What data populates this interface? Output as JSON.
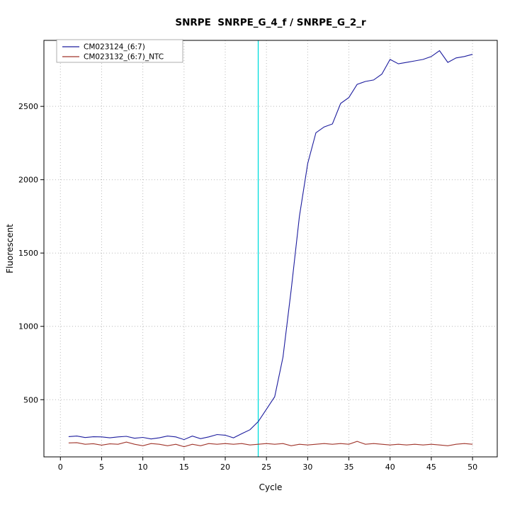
{
  "chart_data": {
    "type": "line",
    "title": "SNRPE  SNRPE_G_4_f / SNRPE_G_2_r",
    "xlabel": "Cycle",
    "ylabel": "Fluorescent",
    "xlim": [
      -2,
      53
    ],
    "ylim": [
      110,
      2950
    ],
    "xticks": [
      0,
      5,
      10,
      15,
      20,
      25,
      30,
      35,
      40,
      45,
      50
    ],
    "yticks": [
      500,
      1000,
      1500,
      2000,
      2500
    ],
    "grid": true,
    "grid_color": "#b9b9b9",
    "legend_position": "top-left",
    "threshold_x": 24,
    "threshold_color": "#00dddd",
    "x": [
      1,
      2,
      3,
      4,
      5,
      6,
      7,
      8,
      9,
      10,
      11,
      12,
      13,
      14,
      15,
      16,
      17,
      18,
      19,
      20,
      21,
      22,
      23,
      24,
      25,
      26,
      27,
      28,
      29,
      30,
      31,
      32,
      33,
      34,
      35,
      36,
      37,
      38,
      39,
      40,
      41,
      42,
      43,
      44,
      45,
      46,
      47,
      48,
      49,
      50
    ],
    "series": [
      {
        "name": "CM023124_(6:7)",
        "color": "#1d1d9e",
        "values": [
          248,
          252,
          242,
          247,
          246,
          240,
          246,
          250,
          237,
          243,
          232,
          240,
          252,
          246,
          228,
          252,
          234,
          246,
          262,
          258,
          240,
          268,
          295,
          350,
          435,
          520,
          790,
          1250,
          1750,
          2110,
          2320,
          2360,
          2380,
          2520,
          2560,
          2650,
          2670,
          2680,
          2720,
          2820,
          2790,
          2800,
          2810,
          2820,
          2840,
          2880,
          2800,
          2830,
          2840,
          2855
        ]
      },
      {
        "name": "CM023132_(6:7)_NTC",
        "color": "#a0352b",
        "values": [
          205,
          207,
          196,
          200,
          190,
          199,
          196,
          211,
          196,
          186,
          201,
          196,
          186,
          196,
          179,
          196,
          186,
          201,
          196,
          201,
          196,
          201,
          191,
          196,
          201,
          196,
          201,
          186,
          196,
          191,
          196,
          201,
          196,
          201,
          196,
          216,
          196,
          201,
          196,
          191,
          196,
          191,
          196,
          191,
          196,
          191,
          186,
          196,
          201,
          196
        ]
      }
    ]
  }
}
